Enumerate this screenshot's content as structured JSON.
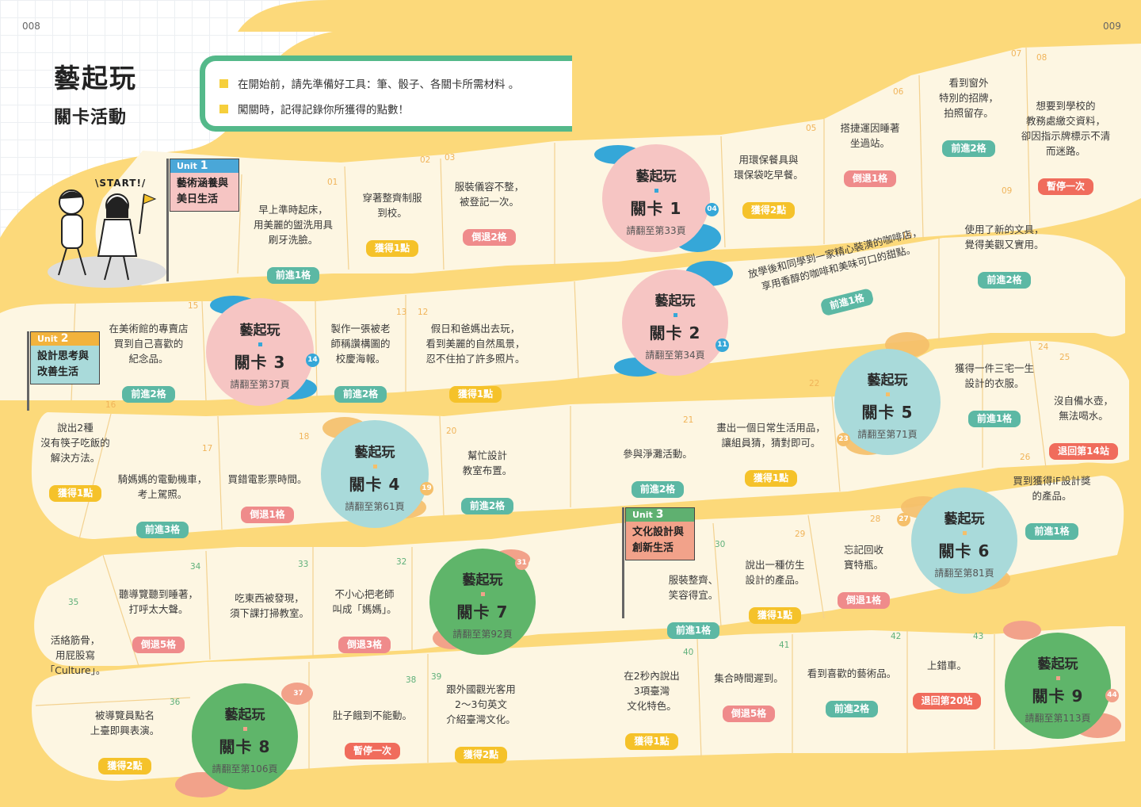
{
  "page_numbers": {
    "left": "008",
    "right": "009"
  },
  "title": {
    "line1": "藝起玩",
    "line2": "關卡活動"
  },
  "notice": [
    "在開始前，請先準備好工具：筆、骰子、各關卡所需材料 。",
    "闖關時，記得記錄你所獲得的點數！"
  ],
  "start_label": "\\START!/",
  "units": [
    {
      "unit_label": "Unit",
      "number": "1",
      "name": "藝術涵養與\n美日生活",
      "color": "#4aa7d8"
    },
    {
      "unit_label": "Unit",
      "number": "2",
      "name": "設計思考與\n改善生活",
      "color": "#f2b33d"
    },
    {
      "unit_label": "Unit",
      "number": "3",
      "name": "文化設計與\n創新生活",
      "color": "#5fb070"
    }
  ],
  "level_common": {
    "title": "藝起玩"
  },
  "levels": [
    {
      "name": "關卡 1",
      "page": "請翻至第33頁",
      "pin": "04",
      "color": "#f6c5c3",
      "pin_color": "#35a7d8"
    },
    {
      "name": "關卡 2",
      "page": "請翻至第34頁",
      "pin": "11",
      "color": "#f6c5c3",
      "pin_color": "#35a7d8"
    },
    {
      "name": "關卡 3",
      "page": "請翻至第37頁",
      "pin": "14",
      "color": "#f6c5c3",
      "pin_color": "#35a7d8"
    },
    {
      "name": "關卡 4",
      "page": "請翻至第61頁",
      "pin": "19",
      "color": "#a9dada",
      "pin_color": "#f5bf6a"
    },
    {
      "name": "關卡 5",
      "page": "請翻至第71頁",
      "pin": "23",
      "color": "#a9dada",
      "pin_color": "#f5bf6a"
    },
    {
      "name": "關卡 6",
      "page": "請翻至第81頁",
      "pin": "27",
      "color": "#a9dada",
      "pin_color": "#f5bf6a"
    },
    {
      "name": "關卡 7",
      "page": "請翻至第92頁",
      "pin": "31",
      "color": "#5fb56a",
      "pin_color": "#f2a28a"
    },
    {
      "name": "關卡 8",
      "page": "請翻至第106頁",
      "pin": "37",
      "color": "#5fb56a",
      "pin_color": "#f2a28a"
    },
    {
      "name": "關卡 9",
      "page": "請翻至第113頁",
      "pin": "44",
      "color": "#5fb56a",
      "pin_color": "#f2a28a"
    }
  ],
  "squares": [
    {
      "n": "01",
      "text": "早上準時起床，\n用美麗的盥洗用具\n刷牙洗臉。",
      "action": "前進1格",
      "type": "fwd"
    },
    {
      "n": "02",
      "text": "穿著整齊制服\n到校。",
      "action": "獲得1點",
      "type": "get"
    },
    {
      "n": "03",
      "text": "服裝儀容不整，\n被登記一次。",
      "action": "倒退2格",
      "type": "back"
    },
    {
      "n": "05",
      "text": "用環保餐具與\n環保袋吃早餐。",
      "action": "獲得2點",
      "type": "get"
    },
    {
      "n": "06",
      "text": "搭捷運因睡著\n坐過站。",
      "action": "倒退1格",
      "type": "back"
    },
    {
      "n": "07",
      "text": "看到窗外\n特別的招牌，\n拍照留存。",
      "action": "前進2格",
      "type": "fwd"
    },
    {
      "n": "08",
      "text": "想要到學校的\n教務處繳交資料，\n卻因指示牌標示不清\n而迷路。",
      "action": "暫停一次",
      "type": "stop"
    },
    {
      "n": "09",
      "text": "使用了新的文具，\n覺得美觀又實用。",
      "action": "前進2格",
      "type": "fwd"
    },
    {
      "n": "10",
      "text": "放學後和同學到一家精心裝潢的咖啡店，\n享用香醇的咖啡和美味可口的甜點。",
      "action": "前進1格",
      "type": "fwd"
    },
    {
      "n": "12",
      "text": "假日和爸媽出去玩，\n看到美麗的自然風景，\n忍不住拍了許多照片。",
      "action": "獲得1點",
      "type": "get"
    },
    {
      "n": "13",
      "text": "製作一張被老\n師稱讚構圖的\n校慶海報。",
      "action": "前進2格",
      "type": "fwd"
    },
    {
      "n": "15",
      "text": "在美術館的專賣店\n買到自己喜歡的\n紀念品。",
      "action": "前進2格",
      "type": "fwd"
    },
    {
      "n": "16",
      "text": "說出2種\n沒有筷子吃飯的\n解決方法。",
      "action": "獲得1點",
      "type": "get"
    },
    {
      "n": "17",
      "text": "騎媽媽的電動機車，\n考上駕照。",
      "action": "前進3格",
      "type": "fwd"
    },
    {
      "n": "18",
      "text": "買錯電影票時間。",
      "action": "倒退1格",
      "type": "back"
    },
    {
      "n": "20",
      "text": "幫忙設計\n教室布置。",
      "action": "前進2格",
      "type": "fwd"
    },
    {
      "n": "21",
      "text": "參與淨灘活動。",
      "action": "前進2格",
      "type": "fwd"
    },
    {
      "n": "22",
      "text": "畫出一個日常生活用品，\n讓組員猜，猜對即可。",
      "action": "獲得1點",
      "type": "get"
    },
    {
      "n": "24",
      "text": "獲得一件三宅一生\n設計的衣服。",
      "action": "前進1格",
      "type": "fwd"
    },
    {
      "n": "25",
      "text": "沒自備水壺，\n無法喝水。",
      "action": "退回第14站",
      "type": "stop"
    },
    {
      "n": "26",
      "text": "買到獲得iF設計獎\n的產品。",
      "action": "前進1格",
      "type": "fwd"
    },
    {
      "n": "28",
      "text": "忘記回收\n寶特瓶。",
      "action": "倒退1格",
      "type": "back"
    },
    {
      "n": "29",
      "text": "說出一種仿生\n設計的產品。",
      "action": "獲得1點",
      "type": "get"
    },
    {
      "n": "30",
      "text": "服裝整齊、\n笑容得宜。",
      "action": "前進1格",
      "type": "fwd"
    },
    {
      "n": "32",
      "text": "不小心把老師\n叫成「媽媽」。",
      "action": "倒退3格",
      "type": "back"
    },
    {
      "n": "33",
      "text": "吃東西被發現，\n須下課打掃教室。",
      "action": "",
      "type": "none"
    },
    {
      "n": "34",
      "text": "聽導覽聽到睡著，\n打呼太大聲。",
      "action": "倒退5格",
      "type": "back"
    },
    {
      "n": "35",
      "text": "活絡筋骨，\n用屁股寫\n「Culture」。",
      "action": "",
      "type": "none"
    },
    {
      "n": "36",
      "text": "被導覽員點名\n上臺即興表演。",
      "action": "獲得2點",
      "type": "get"
    },
    {
      "n": "38",
      "text": "肚子餓到不能動。",
      "action": "暫停一次",
      "type": "stop"
    },
    {
      "n": "39",
      "text": "跟外國觀光客用\n2～3句英文\n介紹臺灣文化。",
      "action": "獲得2點",
      "type": "get"
    },
    {
      "n": "40",
      "text": "在2秒內說出\n3項臺灣\n文化特色。",
      "action": "獲得1點",
      "type": "get"
    },
    {
      "n": "41",
      "text": "集合時間遲到。",
      "action": "倒退5格",
      "type": "back"
    },
    {
      "n": "42",
      "text": "看到喜歡的藝術品。",
      "action": "前進2格",
      "type": "fwd"
    },
    {
      "n": "43",
      "text": "上錯車。",
      "action": "退回第20站",
      "type": "stop"
    }
  ],
  "colors": {
    "path_yellow": "#fcd97a",
    "board_cream": "#fdf6e2",
    "fwd": "#5cb8a4",
    "back": "#ef8b8b",
    "get": "#f5c22a",
    "stop": "#f06c5c"
  }
}
